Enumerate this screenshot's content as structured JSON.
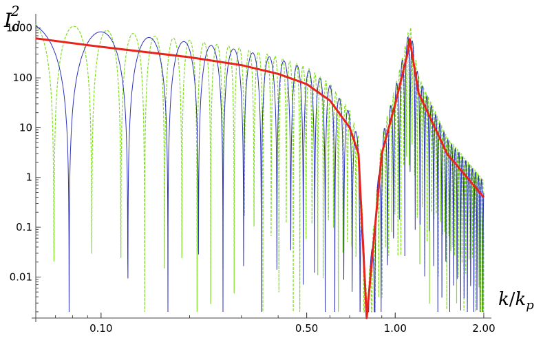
{
  "chart_data": {
    "type": "line",
    "title": "",
    "ylabel": {
      "base": "I",
      "sub": "d",
      "sup": "2"
    },
    "xlabel": {
      "num": "k",
      "den": "k",
      "den_sub": "p"
    },
    "x_scale": "log",
    "y_scale": "log",
    "xlim": [
      0.06,
      2.1
    ],
    "ylim": [
      0.0015,
      1500
    ],
    "x_ticks": [
      {
        "value": 0.1,
        "label": "0.10"
      },
      {
        "value": 0.5,
        "label": "0.50"
      },
      {
        "value": 1.0,
        "label": "1.00"
      },
      {
        "value": 2.0,
        "label": "2.00"
      }
    ],
    "y_ticks": [
      {
        "value": 1000,
        "label": "1000"
      },
      {
        "value": 100,
        "label": "100"
      },
      {
        "value": 10,
        "label": "10"
      },
      {
        "value": 1,
        "label": "1"
      },
      {
        "value": 0.1,
        "label": "0.1"
      },
      {
        "value": 0.01,
        "label": "0.01"
      }
    ],
    "grid": false,
    "series": [
      {
        "style": "thin solid oscillating",
        "color": "#2b2fb8",
        "x_range": [
          0.06,
          2.0
        ],
        "peak_x": 1.12,
        "zero_x": 0.8,
        "oscillation": "decreasing period in log-x"
      },
      {
        "style": "dashed oscillating",
        "color": "#7ee01f",
        "x_range": [
          0.06,
          2.0
        ],
        "peak_x": 1.12,
        "zero_x": 0.8,
        "oscillation": "denser than solid series"
      },
      {
        "style": "thick solid envelope",
        "color": "#e8231c",
        "x": [
          0.06,
          0.1,
          0.2,
          0.3,
          0.4,
          0.5,
          0.6,
          0.7,
          0.75,
          0.8,
          0.9,
          1.0,
          1.1,
          1.12,
          1.2,
          1.5,
          2.0
        ],
        "y": [
          620,
          420,
          260,
          180,
          120,
          75,
          35,
          10,
          3,
          0.0015,
          3,
          30,
          300,
          600,
          50,
          3,
          0.4
        ]
      }
    ]
  }
}
